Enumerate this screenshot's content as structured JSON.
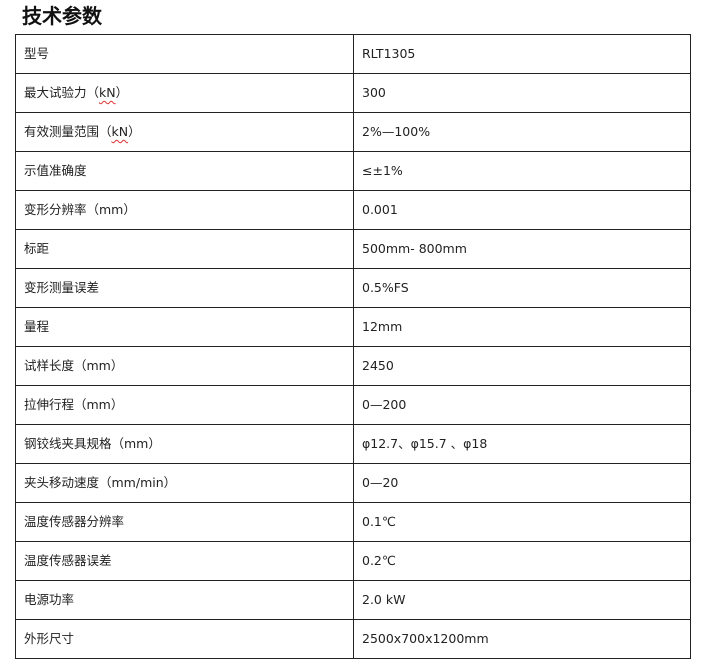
{
  "title": "技术参数",
  "rows": [
    {
      "label": "型号",
      "value": "RLT1305"
    },
    {
      "label_pre": "最大试验力（",
      "label_unit": "kN",
      "label_post": "）",
      "value": "300"
    },
    {
      "label_pre": "有效测量范围（",
      "label_unit": "kN",
      "label_post": "）",
      "value": "2%—100%"
    },
    {
      "label": "示值准确度",
      "value": "≤±1%"
    },
    {
      "label": "变形分辨率（mm）",
      "value": "0.001"
    },
    {
      "label": "标距",
      "value": "500mm- 800mm"
    },
    {
      "label": "变形测量误差",
      "value": "0.5%FS"
    },
    {
      "label": "量程",
      "value": "12mm"
    },
    {
      "label": "试样长度（mm）",
      "value": "2450"
    },
    {
      "label": "拉伸行程（mm）",
      "value": "0—200"
    },
    {
      "label": "钢铰线夹具规格（mm）",
      "value": "φ12.7、φ15.7 、φ18"
    },
    {
      "label": "夹头移动速度（mm/min）",
      "value": "0—20"
    },
    {
      "label": "温度传感器分辨率",
      "value": "0.1℃"
    },
    {
      "label": "温度传感器误差",
      "value": "0.2℃"
    },
    {
      "label": "电源功率",
      "value": "2.0 kW"
    },
    {
      "label": "外形尺寸",
      "value": "2500x700x1200mm"
    }
  ]
}
